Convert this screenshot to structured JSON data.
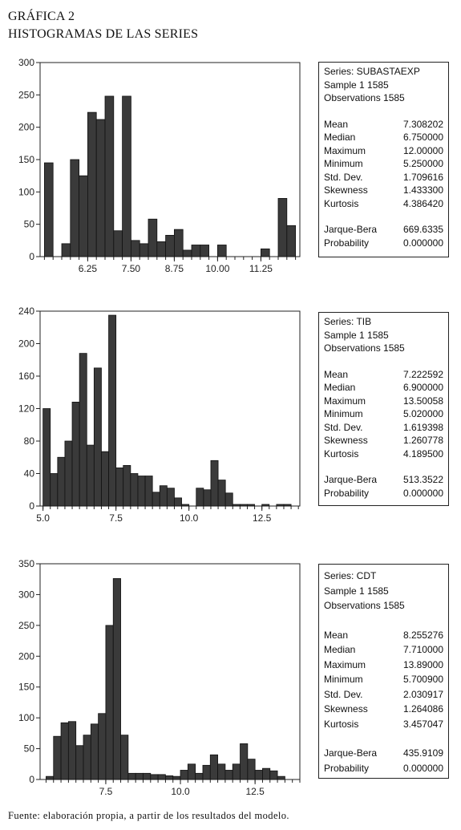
{
  "header": {
    "line1": "GRÁFICA 2",
    "line2": "HISTOGRAMAS DE LAS SERIES"
  },
  "source": "Fuente: elaboración propia, a partir de los resultados del modelo.",
  "chart_data": [
    {
      "type": "bar",
      "series_name": "SUBASTAEXP",
      "bin_start": 5.0,
      "bin_width": 0.25,
      "values": [
        145,
        0,
        20,
        150,
        125,
        223,
        212,
        248,
        40,
        248,
        25,
        20,
        58,
        23,
        33,
        42,
        10,
        18,
        18,
        0,
        18,
        0,
        0,
        0,
        0,
        12,
        0,
        90,
        48
      ],
      "xlim": [
        4.875,
        12.375
      ],
      "ylim": [
        0,
        300
      ],
      "y_ticks": [
        0,
        50,
        100,
        150,
        200,
        250,
        300
      ],
      "x_ticks": [
        6.25,
        7.5,
        8.75,
        10.0,
        11.25
      ],
      "x_tick_labels": [
        "6.25",
        "7.50",
        "8.75",
        "10.00",
        "11.25"
      ],
      "stats": {
        "series_label": "Series: SUBASTAEXP",
        "sample_label": "Sample 1 1585",
        "obs_label": "Observations 1585",
        "rows": [
          {
            "label": "Mean",
            "value": "7.308202"
          },
          {
            "label": "Median",
            "value": "6.750000"
          },
          {
            "label": "Maximum",
            "value": "12.00000"
          },
          {
            "label": "Minimum",
            "value": "5.250000"
          },
          {
            "label": "Std. Dev.",
            "value": "1.709616"
          },
          {
            "label": "Skewness",
            "value": "1.433300"
          },
          {
            "label": "Kurtosis",
            "value": "4.386420"
          }
        ],
        "rows2": [
          {
            "label": "Jarque-Bera",
            "value": "669.6335"
          },
          {
            "label": "Probability",
            "value": "0.000000"
          }
        ]
      }
    },
    {
      "type": "bar",
      "series_name": "TIB",
      "bin_start": 5.0,
      "bin_width": 0.25,
      "values": [
        120,
        40,
        60,
        80,
        128,
        188,
        75,
        170,
        67,
        235,
        47,
        50,
        40,
        37,
        37,
        17,
        25,
        22,
        10,
        2,
        0,
        22,
        20,
        56,
        32,
        16,
        2,
        2,
        2,
        0,
        2,
        0,
        2,
        2
      ],
      "xlim": [
        4.9,
        13.8
      ],
      "ylim": [
        0,
        240
      ],
      "y_ticks": [
        0,
        40,
        80,
        120,
        160,
        200,
        240
      ],
      "x_ticks": [
        5.0,
        7.5,
        10.0,
        12.5
      ],
      "x_tick_labels": [
        "5.0",
        "7.5",
        "10.0",
        "12.5"
      ],
      "stats": {
        "series_label": "Series: TIB",
        "sample_label": "Sample 1 1585",
        "obs_label": "Observations 1585",
        "rows": [
          {
            "label": "Mean",
            "value": "7.222592"
          },
          {
            "label": "Median",
            "value": "6.900000"
          },
          {
            "label": "Maximum",
            "value": "13.50058"
          },
          {
            "label": "Minimum",
            "value": "5.020000"
          },
          {
            "label": "Std. Dev.",
            "value": "1.619398"
          },
          {
            "label": "Skewness",
            "value": "1.260778"
          },
          {
            "label": "Kurtosis",
            "value": "4.189500"
          }
        ],
        "rows2": [
          {
            "label": "Jarque-Bera",
            "value": "513.3522"
          },
          {
            "label": "Probability",
            "value": "0.000000"
          }
        ]
      }
    },
    {
      "type": "bar",
      "series_name": "CDT",
      "bin_start": 5.5,
      "bin_width": 0.25,
      "values": [
        5,
        70,
        92,
        94,
        55,
        72,
        90,
        107,
        250,
        326,
        72,
        10,
        10,
        10,
        8,
        8,
        6,
        5,
        15,
        25,
        10,
        23,
        40,
        25,
        15,
        25,
        58,
        33,
        15,
        18,
        14,
        5
      ],
      "xlim": [
        5.3,
        14.0
      ],
      "ylim": [
        0,
        350
      ],
      "y_ticks": [
        0,
        50,
        100,
        150,
        200,
        250,
        300,
        350
      ],
      "x_ticks": [
        7.5,
        10.0,
        12.5
      ],
      "x_tick_labels": [
        "7.5",
        "10.0",
        "12.5"
      ],
      "stats": {
        "series_label": "Series: CDT",
        "sample_label": "Sample 1 1585",
        "obs_label": "Observations 1585",
        "rows": [
          {
            "label": "Mean",
            "value": "8.255276"
          },
          {
            "label": "Median",
            "value": "7.710000"
          },
          {
            "label": "Maximum",
            "value": "13.89000"
          },
          {
            "label": "Minimum",
            "value": "5.700900"
          },
          {
            "label": "Std. Dev.",
            "value": "2.030917"
          },
          {
            "label": "Skewness",
            "value": "1.264086"
          },
          {
            "label": "Kurtosis",
            "value": "3.457047"
          }
        ],
        "rows2": [
          {
            "label": "Jarque-Bera",
            "value": "435.9109"
          },
          {
            "label": "Probability",
            "value": "0.000000"
          }
        ]
      }
    }
  ]
}
